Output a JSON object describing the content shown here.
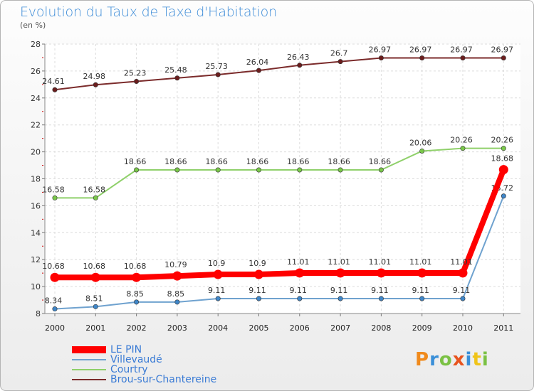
{
  "title": "Evolution du Taux de Taxe d'Habitation",
  "unit": "(en %)",
  "brand": "Proxiti",
  "chart_data": {
    "type": "line",
    "x": [
      "2000",
      "2001",
      "2002",
      "2003",
      "2004",
      "2005",
      "2006",
      "2007",
      "2008",
      "2009",
      "2010",
      "2011"
    ],
    "yticks": [
      "8",
      "10",
      "12",
      "14",
      "16",
      "18",
      "20",
      "22",
      "24",
      "26",
      "28"
    ],
    "ylim": [
      8,
      28
    ],
    "grid": true,
    "legend_position": "bottom-left",
    "series": [
      {
        "name": "Brou-sur-Chantereine",
        "color": "#7b2b2b",
        "dot": "#6b1d1d",
        "values": [
          24.61,
          24.98,
          25.23,
          25.48,
          25.73,
          26.04,
          26.43,
          26.7,
          26.97,
          26.97,
          26.97,
          26.97
        ],
        "labels": [
          "24.61",
          "24.98",
          "25.23",
          "25.48",
          "25.73",
          "26.04",
          "26.43",
          "26.7",
          "26.97",
          "26.97",
          "26.97",
          "26.97"
        ]
      },
      {
        "name": "Courtry",
        "color": "#8fd06a",
        "dot": "#7ac84a",
        "values": [
          16.58,
          16.58,
          18.66,
          18.66,
          18.66,
          18.66,
          18.66,
          18.66,
          18.66,
          20.06,
          20.26,
          20.26
        ],
        "labels": [
          "16.58",
          "16.58",
          "18.66",
          "18.66",
          "18.66",
          "18.66",
          "18.66",
          "18.66",
          "18.66",
          "20.06",
          "20.26",
          "20.26"
        ]
      },
      {
        "name": "Villevaudé",
        "color": "#6fa2cf",
        "dot": "#3f86c8",
        "values": [
          8.34,
          8.51,
          8.85,
          8.85,
          9.11,
          9.11,
          9.11,
          9.11,
          9.11,
          9.11,
          9.11,
          16.72
        ],
        "labels": [
          "8.34",
          "8.51",
          "8.85",
          "8.85",
          "9.11",
          "9.11",
          "9.11",
          "9.11",
          "9.11",
          "9.11",
          "9.11",
          "16.72"
        ]
      },
      {
        "name": "LE PIN",
        "color": "#ff0000",
        "dot": "#ff0000",
        "values": [
          10.68,
          10.68,
          10.68,
          10.79,
          10.9,
          10.9,
          11.01,
          11.01,
          11.01,
          11.01,
          11.01,
          18.68
        ],
        "labels": [
          "10.68",
          "10.68",
          "10.68",
          "10.79",
          "10.9",
          "10.9",
          "11.01",
          "11.01",
          "11.01",
          "11.01",
          "11.01",
          "18.68"
        ]
      }
    ],
    "legend_order": [
      "LE PIN",
      "Villevaudé",
      "Courtry",
      "Brou-sur-Chantereine"
    ]
  }
}
